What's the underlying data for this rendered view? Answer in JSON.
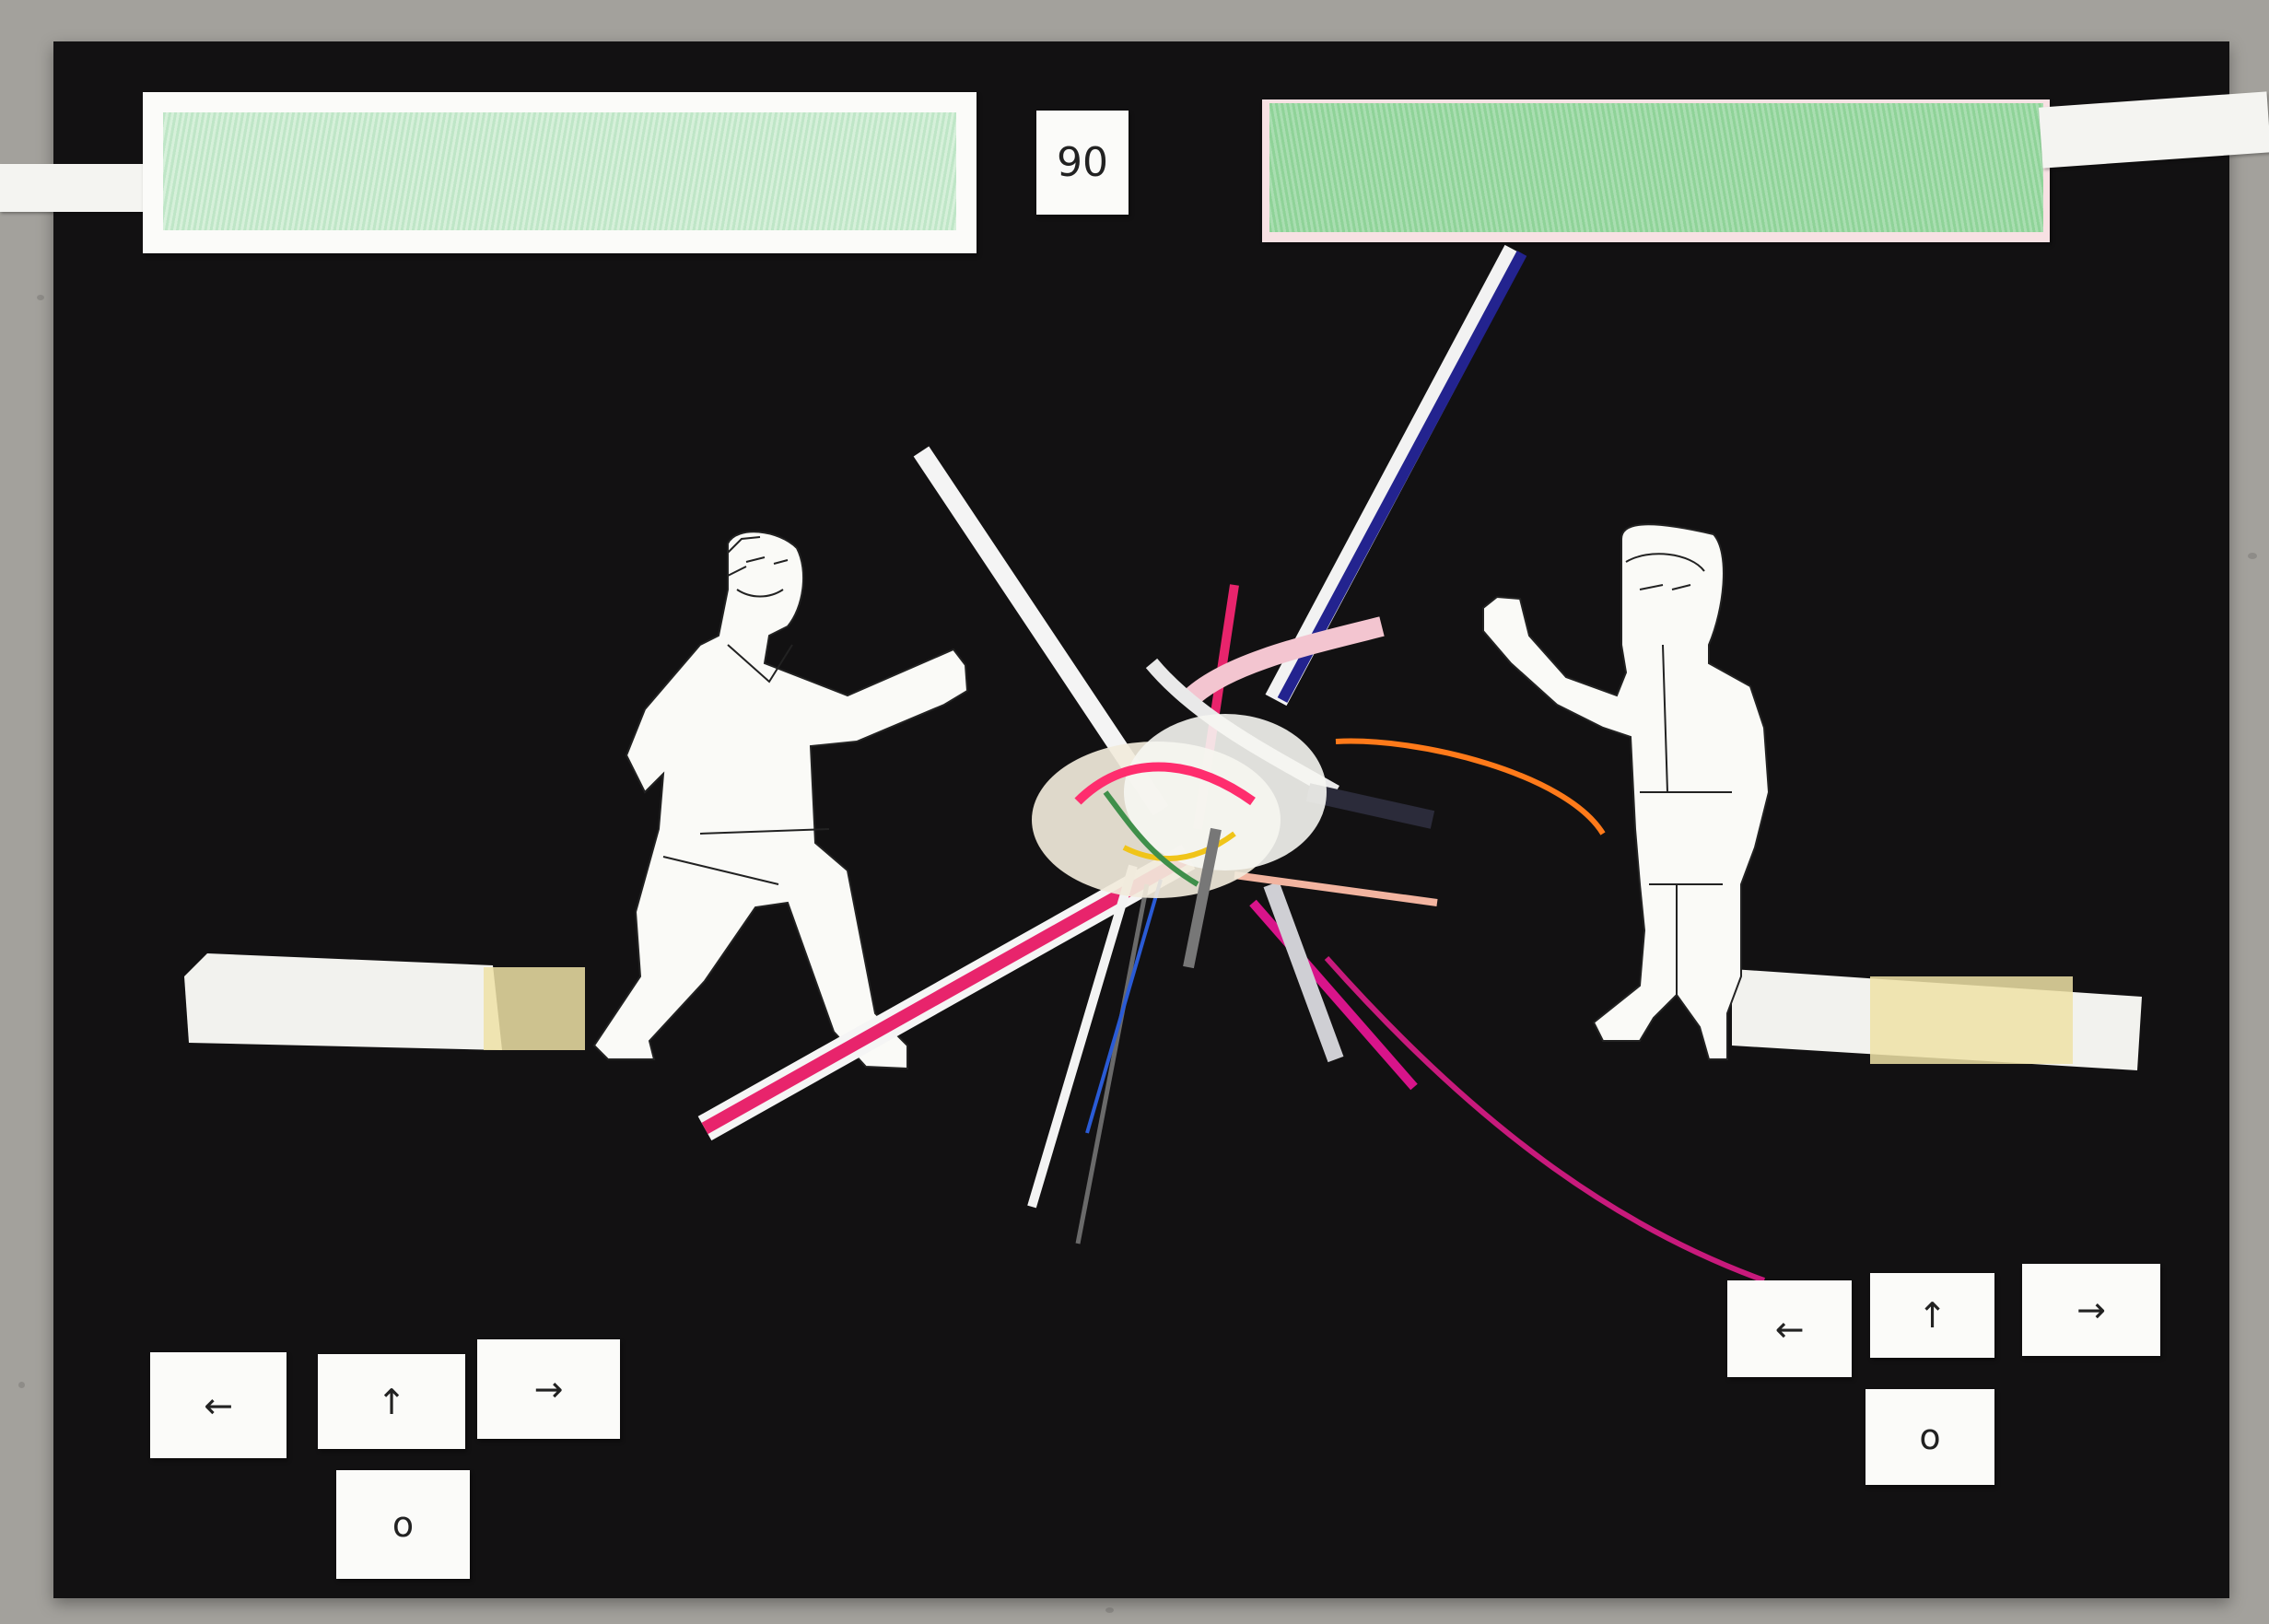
{
  "timer": {
    "value": "90"
  },
  "player1": {
    "health_level": 1.0,
    "health_color": "#c9ecd0",
    "controls": {
      "left": "←",
      "up": "↑",
      "right": "→",
      "action": "o"
    }
  },
  "player2": {
    "health_level": 1.0,
    "health_color": "#9fd9a7",
    "controls": {
      "left": "←",
      "up": "↑",
      "right": "→",
      "action": "o"
    }
  },
  "colors": {
    "board": "#121112",
    "paper": "#fbfbf9",
    "clash_pink": "#e8246c",
    "clash_blue": "#23238f",
    "clash_orange": "#ff7a1a"
  },
  "icons": [
    "left-arrow-icon",
    "up-arrow-icon",
    "right-arrow-icon",
    "circle-icon"
  ]
}
